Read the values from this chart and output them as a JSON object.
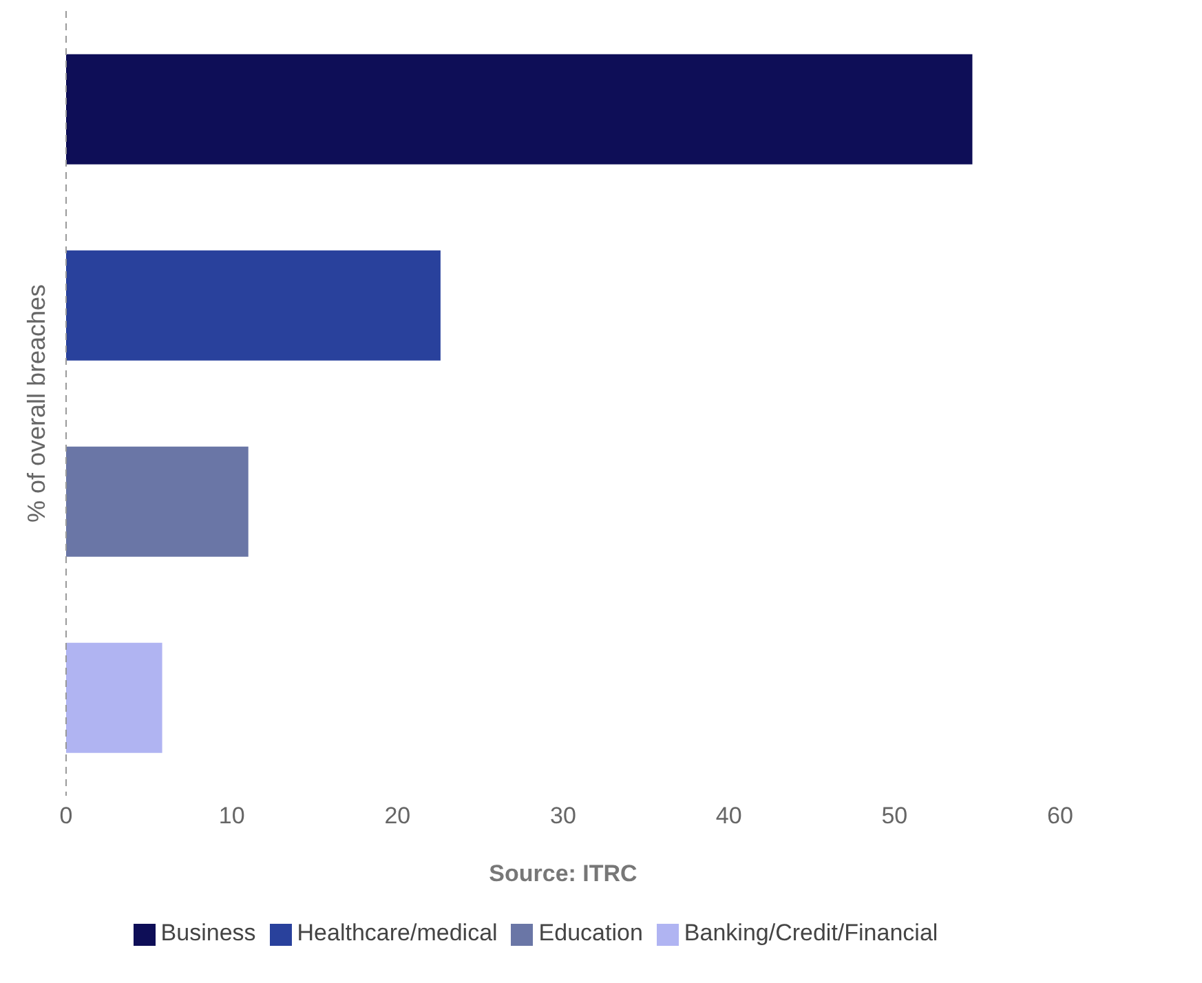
{
  "chart_data": {
    "type": "bar",
    "orientation": "horizontal",
    "ylabel": "% of overall breaches",
    "xlabel": "Source: ITRC",
    "categories": [
      null,
      null,
      null,
      null
    ],
    "series": [
      {
        "name": "Business",
        "color": "#0e0e57",
        "values": [
          54.7,
          null,
          null,
          null
        ]
      },
      {
        "name": "Healthcare/medical",
        "color": "#29419c",
        "values": [
          null,
          22.6,
          null,
          null
        ]
      },
      {
        "name": "Education",
        "color": "#6a76a6",
        "values": [
          null,
          null,
          11.0,
          null
        ]
      },
      {
        "name": "Banking/Credit/Financial",
        "color": "#b0b4f2",
        "values": [
          null,
          null,
          null,
          5.8
        ]
      }
    ],
    "xlim": [
      0,
      60
    ],
    "xticks": [
      0,
      10,
      20,
      30,
      40,
      50,
      60
    ],
    "grid": false,
    "legend": "bottom"
  }
}
